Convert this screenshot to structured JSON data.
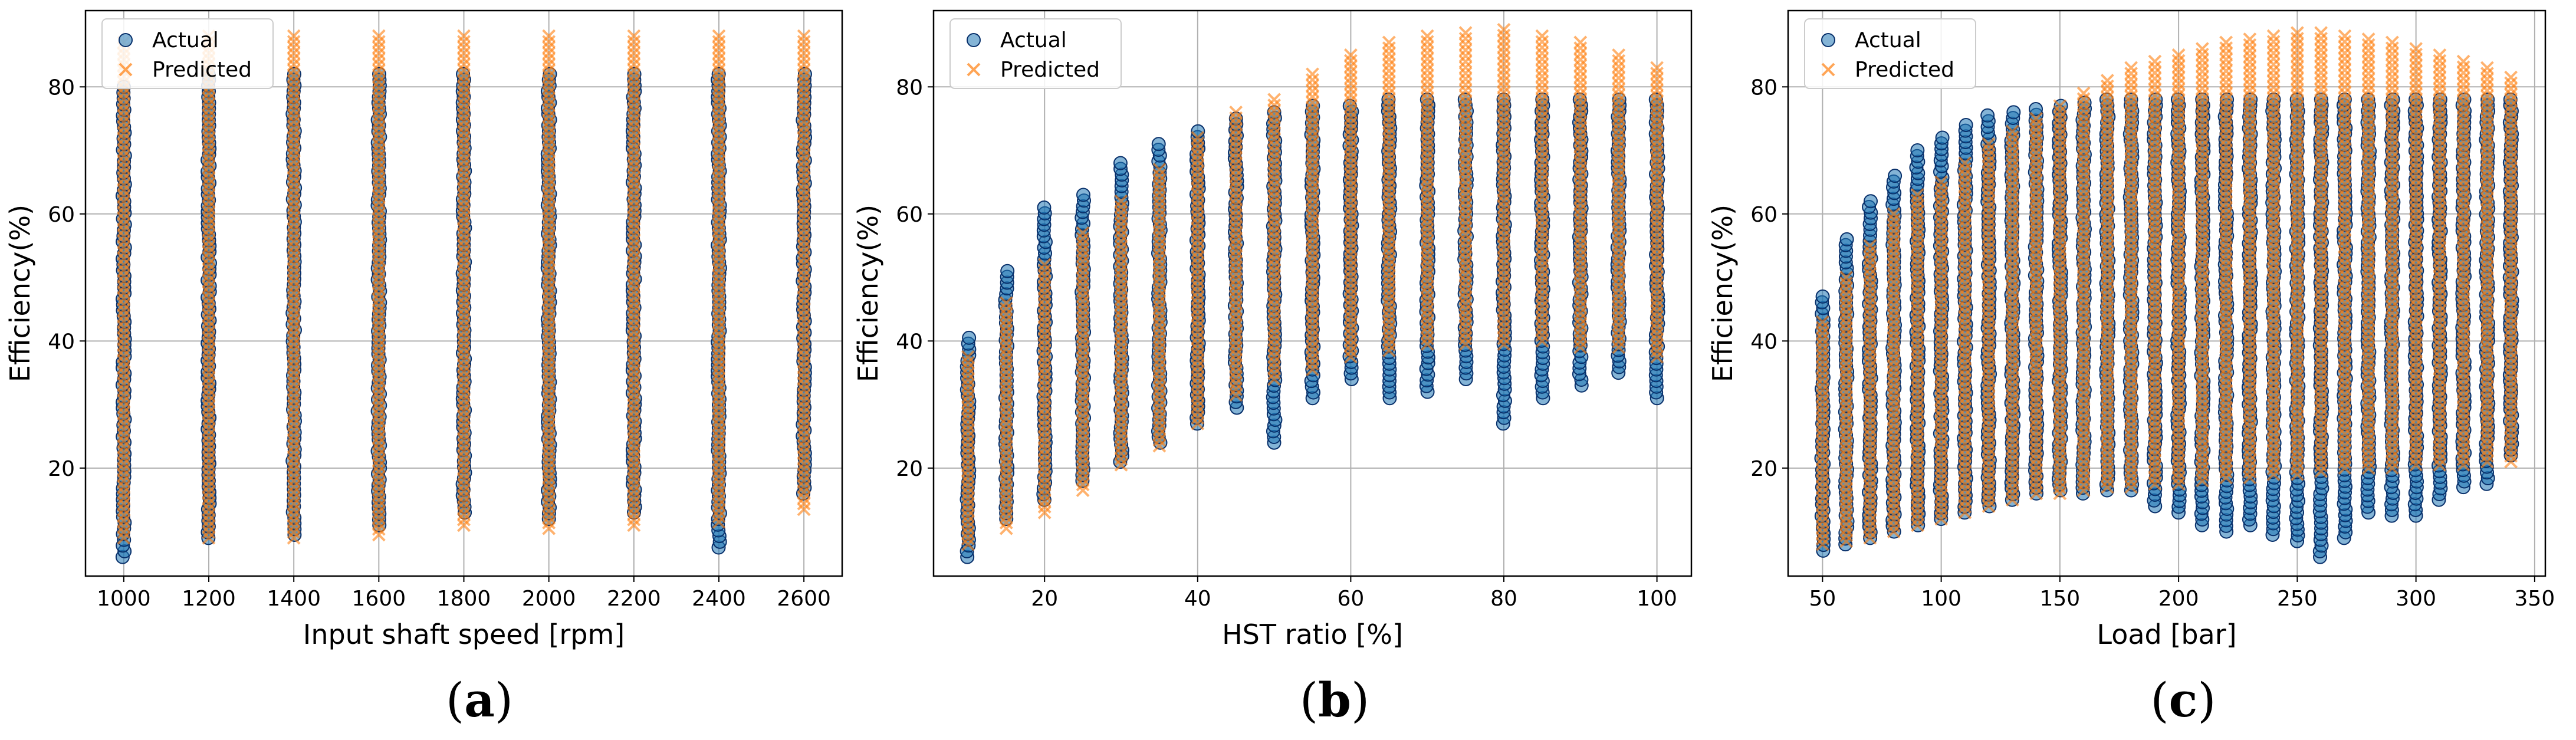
{
  "colors": {
    "actual_fill": "#1f77b4",
    "actual_edge": "#08306b",
    "predicted": "#ff7f0e",
    "grid": "#b0b0b0"
  },
  "panels": [
    {
      "caption_letter": "a",
      "caption_open": "(",
      "caption_close": ")"
    },
    {
      "caption_letter": "b",
      "caption_open": "(",
      "caption_close": ")"
    },
    {
      "caption_letter": "c",
      "caption_open": "(",
      "caption_close": ")"
    }
  ],
  "chart_data": [
    {
      "type": "scatter",
      "title": "",
      "xlabel": "Input shaft speed [rpm]",
      "ylabel": "Efficiency(%)",
      "xlim": [
        910,
        2690
      ],
      "ylim": [
        3,
        92
      ],
      "xticks": [
        1000,
        1200,
        1400,
        1600,
        1800,
        2000,
        2200,
        2400,
        2600
      ],
      "yticks": [
        20,
        40,
        60,
        80
      ],
      "grid": true,
      "legend": {
        "position": "upper-left",
        "entries": [
          "Actual",
          "Predicted"
        ]
      },
      "series": [
        {
          "name": "Actual",
          "marker": "circle",
          "x": [
            1000,
            1200,
            1400,
            1600,
            1800,
            2000,
            2200,
            2400,
            2600
          ],
          "ymin": [
            6,
            9,
            9.5,
            11,
            13,
            12,
            13,
            7.5,
            16
          ],
          "ymax": [
            80,
            82,
            82,
            82,
            82,
            82,
            82,
            82,
            82
          ]
        },
        {
          "name": "Predicted",
          "marker": "x",
          "x": [
            1000,
            1200,
            1400,
            1600,
            1800,
            2000,
            2200,
            2400,
            2600
          ],
          "ymin": [
            9,
            9,
            9,
            9.5,
            11,
            10.5,
            11,
            11.5,
            13.5
          ],
          "ymax": [
            87,
            88,
            88,
            88,
            88,
            88,
            88,
            88,
            88
          ]
        }
      ]
    },
    {
      "type": "scatter",
      "title": "",
      "xlabel": "HST ratio [%]",
      "ylabel": "Efficiency(%)",
      "xlim": [
        5.5,
        104.5
      ],
      "ylim": [
        3,
        92
      ],
      "xticks": [
        20,
        40,
        60,
        80,
        100
      ],
      "yticks": [
        20,
        40,
        60,
        80
      ],
      "grid": true,
      "legend": {
        "position": "upper-left",
        "entries": [
          "Actual",
          "Predicted"
        ]
      },
      "series": [
        {
          "name": "Actual",
          "marker": "circle",
          "x": [
            10,
            15,
            20,
            25,
            30,
            35,
            40,
            45,
            50,
            55,
            60,
            65,
            70,
            75,
            80,
            85,
            90,
            95,
            100
          ],
          "ymin": [
            6,
            12,
            15,
            18,
            21,
            24,
            27,
            29.5,
            24,
            31,
            34,
            31,
            32,
            34,
            27,
            31,
            33,
            35,
            31
          ],
          "ymax": [
            40.5,
            51,
            61,
            63,
            68,
            71,
            73,
            75,
            76,
            77,
            77,
            78,
            78,
            78,
            78,
            78,
            78,
            78,
            78
          ]
        },
        {
          "name": "Predicted",
          "marker": "x",
          "x": [
            10,
            15,
            20,
            25,
            30,
            35,
            40,
            45,
            50,
            55,
            60,
            65,
            70,
            75,
            80,
            85,
            90,
            95,
            100
          ],
          "ymin": [
            8,
            10.5,
            13,
            16.5,
            20.5,
            23.5,
            27,
            31.5,
            34,
            35.5,
            37.5,
            38.5,
            39.5,
            39.5,
            39.5,
            40,
            39,
            39,
            37.5
          ],
          "ymax": [
            37.5,
            46,
            52,
            57,
            62,
            67,
            72,
            76,
            78,
            82,
            85,
            87,
            88,
            88.5,
            89,
            88,
            87,
            85,
            83
          ]
        }
      ]
    },
    {
      "type": "scatter",
      "title": "",
      "xlabel": "Load [bar]",
      "ylabel": "Efficiency(%)",
      "xlim": [
        35.5,
        354.5
      ],
      "ylim": [
        3,
        92
      ],
      "xticks": [
        50,
        100,
        150,
        200,
        250,
        300,
        350
      ],
      "yticks": [
        20,
        40,
        60,
        80
      ],
      "grid": true,
      "legend": {
        "position": "upper-left",
        "entries": [
          "Actual",
          "Predicted"
        ]
      },
      "series": [
        {
          "name": "Actual",
          "marker": "circle",
          "x": [
            50,
            60,
            70,
            80,
            90,
            100,
            110,
            120,
            130,
            140,
            150,
            160,
            170,
            180,
            190,
            200,
            210,
            220,
            230,
            240,
            250,
            260,
            270,
            280,
            290,
            300,
            310,
            320,
            330,
            340
          ],
          "ymin": [
            7,
            8,
            9,
            10,
            11,
            12,
            13,
            14,
            15,
            16,
            16.5,
            16,
            16.5,
            16.5,
            14,
            13,
            11,
            10,
            11,
            9.5,
            8.5,
            6,
            9,
            13,
            12.5,
            12.5,
            15,
            17,
            17.5,
            22
          ],
          "ymax": [
            47,
            56,
            62,
            66,
            70,
            72,
            74,
            75.5,
            76,
            76.5,
            77,
            77.5,
            78,
            78,
            78,
            78,
            78,
            78,
            78,
            78,
            78,
            78,
            78,
            78,
            78,
            78,
            78,
            78,
            78,
            78
          ]
        },
        {
          "name": "Predicted",
          "marker": "x",
          "x": [
            50,
            60,
            70,
            80,
            90,
            100,
            110,
            120,
            130,
            140,
            150,
            160,
            170,
            180,
            190,
            200,
            210,
            220,
            230,
            240,
            250,
            260,
            270,
            280,
            290,
            300,
            310,
            320,
            330,
            340
          ],
          "ymin": [
            8,
            8.5,
            9,
            10,
            11,
            12,
            13,
            14,
            15,
            16,
            16,
            16.5,
            17,
            17,
            17.5,
            17.5,
            18,
            18.5,
            18.5,
            19,
            19,
            19.5,
            20,
            20,
            20,
            20.5,
            20.5,
            20.5,
            21,
            21
          ],
          "ymax": [
            43,
            50,
            55,
            60,
            63,
            65,
            68,
            71,
            73,
            75,
            77,
            79,
            81,
            83,
            84,
            85,
            86,
            87,
            87.5,
            88,
            88.5,
            88.5,
            88,
            87.5,
            87,
            86,
            85,
            84,
            83,
            81.5
          ]
        }
      ]
    }
  ]
}
